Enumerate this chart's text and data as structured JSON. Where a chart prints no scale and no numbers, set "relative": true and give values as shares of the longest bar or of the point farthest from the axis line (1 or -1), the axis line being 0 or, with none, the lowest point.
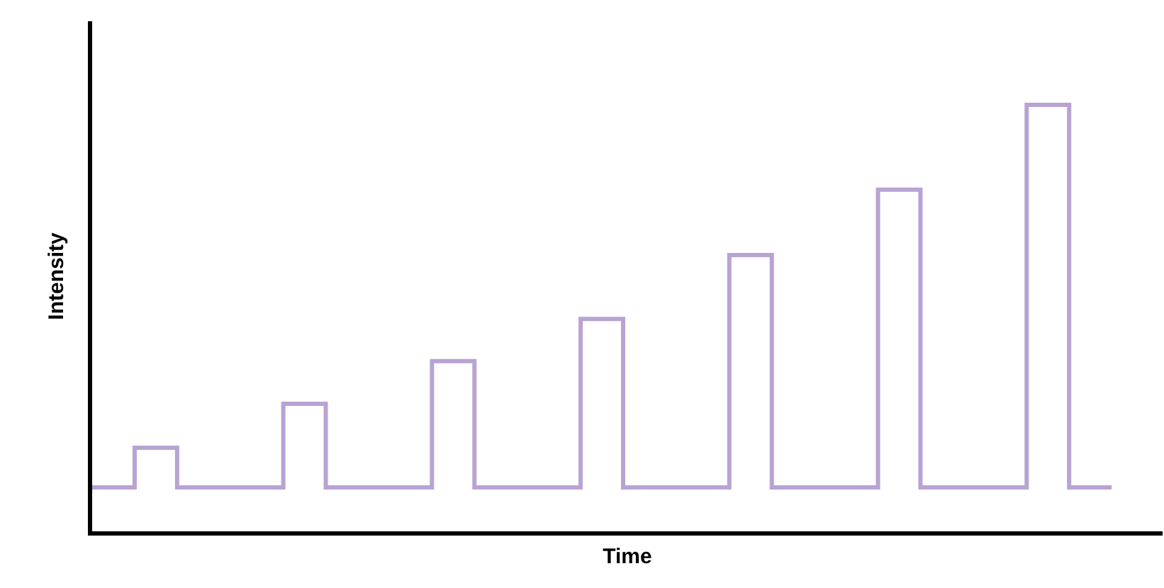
{
  "chart_data": {
    "type": "step",
    "xlabel": "Time",
    "ylabel": "Intensity",
    "relative": true,
    "marker": "none",
    "line_style": "solid",
    "categories": [
      null,
      null,
      null,
      null,
      null,
      null,
      null,
      null,
      null,
      null,
      null,
      null,
      null,
      null,
      null,
      null,
      null,
      null,
      null,
      null,
      null,
      null,
      null,
      null,
      null,
      null,
      null,
      null,
      null,
      null,
      null,
      null,
      null,
      null,
      null,
      null,
      null,
      null,
      null,
      null,
      null,
      null,
      null,
      null,
      null,
      null,
      null,
      null,
      null
    ],
    "series": [
      {
        "color": "#b8a3d4",
        "values": [
          0.103,
          0.103,
          0.196,
          0.196,
          0.103,
          0.103,
          0.103,
          0.103,
          0.103,
          0.299,
          0.299,
          0.103,
          0.103,
          0.103,
          0.103,
          0.103,
          0.399,
          0.399,
          0.103,
          0.103,
          0.103,
          0.103,
          0.103,
          0.498,
          0.498,
          0.103,
          0.103,
          0.103,
          0.103,
          0.103,
          0.648,
          0.648,
          0.103,
          0.103,
          0.103,
          0.103,
          0.103,
          0.801,
          0.801,
          0.103,
          0.103,
          0.103,
          0.103,
          0.103,
          1,
          1,
          0.103,
          0.103,
          0.103
        ]
      }
    ]
  }
}
